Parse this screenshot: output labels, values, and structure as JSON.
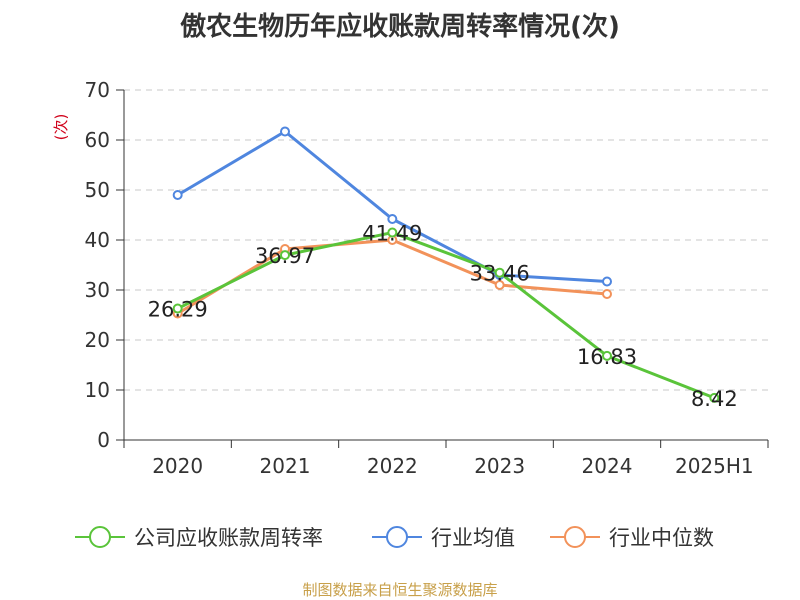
{
  "chart_data": {
    "type": "line",
    "title": "傲农生物历年应收账款周转率情况(次)",
    "ylabel": "(次)",
    "xlabel": "",
    "categories": [
      "2020",
      "2021",
      "2022",
      "2023",
      "2024",
      "2025H1"
    ],
    "yticks": [
      "0",
      "10",
      "20",
      "30",
      "40",
      "50",
      "60",
      "70"
    ],
    "ylim": [
      0,
      70
    ],
    "grid": true,
    "legend_position": "bottom",
    "series": [
      {
        "name": "公司应收账款周转率",
        "color": "#5ac43a",
        "values": [
          26.29,
          36.97,
          41.49,
          33.46,
          16.83,
          8.42
        ],
        "labels": [
          "26.29",
          "36.97",
          "41.49",
          "33.46",
          "16.83",
          "8.42"
        ]
      },
      {
        "name": "行业均值",
        "color": "#4f86df",
        "values": [
          49.0,
          61.7,
          44.2,
          33.0,
          31.7,
          null
        ]
      },
      {
        "name": "行业中位数",
        "color": "#f2925a",
        "values": [
          25.3,
          38.2,
          40.0,
          31.0,
          29.2,
          null
        ]
      }
    ]
  },
  "footer": {
    "source": "制图数据来自恒生聚源数据库"
  }
}
